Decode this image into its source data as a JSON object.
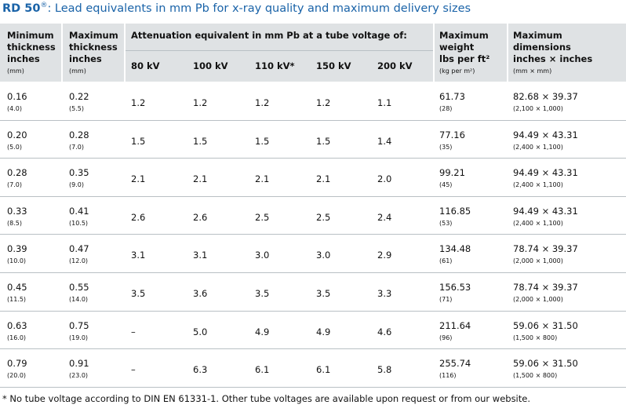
{
  "title": {
    "brand": "RD 50",
    "reg": "®",
    "rest": ": Lead equivalents in mm Pb for x-ray quality and maximum delivery sizes"
  },
  "headers": {
    "min": {
      "lines": [
        "Minimum",
        "thickness",
        "inches"
      ],
      "unit": "(mm)"
    },
    "max": {
      "lines": [
        "Maximum",
        "thickness",
        "inches"
      ],
      "unit": "(mm)"
    },
    "attenuation": "Attenuation equivalent in mm Pb at a tube voltage of:",
    "voltages": [
      "80 kV",
      "100 kV",
      "110 kV*",
      "150 kV",
      "200 kV"
    ],
    "weight": {
      "lines": [
        "Maximum",
        "weight",
        "lbs per ft²"
      ],
      "unit": "(kg per m²)"
    },
    "dims": {
      "lines": [
        "Maximum",
        "dimensions",
        "inches × inches"
      ],
      "unit": "(mm × mm)"
    }
  },
  "rows": [
    {
      "min_in": "0.16",
      "min_mm": "(4.0)",
      "max_in": "0.22",
      "max_mm": "(5.5)",
      "att": [
        "1.2",
        "1.2",
        "1.2",
        "1.2",
        "1.1"
      ],
      "weight": "61.73",
      "weight_kg": "(28)",
      "dims": "82.68 × 39.37",
      "dims_mm": "(2,100 × 1,000)"
    },
    {
      "min_in": "0.20",
      "min_mm": "(5.0)",
      "max_in": "0.28",
      "max_mm": "(7.0)",
      "att": [
        "1.5",
        "1.5",
        "1.5",
        "1.5",
        "1.4"
      ],
      "weight": "77.16",
      "weight_kg": "(35)",
      "dims": "94.49 × 43.31",
      "dims_mm": "(2,400 × 1,100)"
    },
    {
      "min_in": "0.28",
      "min_mm": "(7.0)",
      "max_in": "0.35",
      "max_mm": "(9.0)",
      "att": [
        "2.1",
        "2.1",
        "2.1",
        "2.1",
        "2.0"
      ],
      "weight": "99.21",
      "weight_kg": "(45)",
      "dims": "94.49 × 43.31",
      "dims_mm": "(2,400 × 1,100)"
    },
    {
      "min_in": "0.33",
      "min_mm": "(8.5)",
      "max_in": "0.41",
      "max_mm": "(10.5)",
      "att": [
        "2.6",
        "2.6",
        "2.5",
        "2.5",
        "2.4"
      ],
      "weight": "116.85",
      "weight_kg": "(53)",
      "dims": "94.49 × 43.31",
      "dims_mm": "(2,400 × 1,100)"
    },
    {
      "min_in": "0.39",
      "min_mm": "(10.0)",
      "max_in": "0.47",
      "max_mm": "(12.0)",
      "att": [
        "3.1",
        "3.1",
        "3.0",
        "3.0",
        "2.9"
      ],
      "weight": "134.48",
      "weight_kg": "(61)",
      "dims": "78.74 × 39.37",
      "dims_mm": "(2,000 × 1,000)"
    },
    {
      "min_in": "0.45",
      "min_mm": "(11.5)",
      "max_in": "0.55",
      "max_mm": "(14.0)",
      "att": [
        "3.5",
        "3.6",
        "3.5",
        "3.5",
        "3.3"
      ],
      "weight": "156.53",
      "weight_kg": "(71)",
      "dims": "78.74 × 39.37",
      "dims_mm": "(2,000 × 1,000)"
    },
    {
      "min_in": "0.63",
      "min_mm": "(16.0)",
      "max_in": "0.75",
      "max_mm": "(19.0)",
      "att": [
        "–",
        "5.0",
        "4.9",
        "4.9",
        "4.6"
      ],
      "weight": "211.64",
      "weight_kg": "(96)",
      "dims": "59.06 × 31.50",
      "dims_mm": "(1,500 × 800)"
    },
    {
      "min_in": "0.79",
      "min_mm": "(20.0)",
      "max_in": "0.91",
      "max_mm": "(23.0)",
      "att": [
        "–",
        "6.3",
        "6.1",
        "6.1",
        "5.8"
      ],
      "weight": "255.74",
      "weight_kg": "(116)",
      "dims": "59.06 × 31.50",
      "dims_mm": "(1,500 × 800)"
    }
  ],
  "footnote": "* No tube voltage according to DIN EN 61331-1. Other tube voltages are available upon request or from our website.",
  "colors": {
    "title": "#1a63a8",
    "header_bg": "#dfe2e4",
    "rule": "#b9c0c4"
  }
}
